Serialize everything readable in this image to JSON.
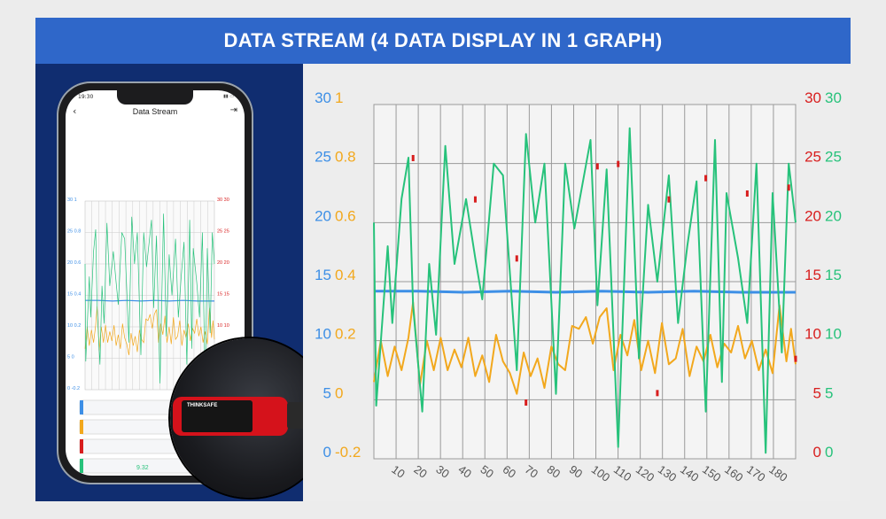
{
  "banner": {
    "title": "DATA STREAM (4 DATA DISPLAY IN 1 GRAPH)"
  },
  "phone": {
    "status_time": "19:30",
    "app_title": "Data Stream",
    "row_value": "9.32",
    "mini_axes": {
      "left": [
        "30 1",
        "25 0.8",
        "20 0.6",
        "15 0.4",
        "10 0.2",
        "5 0",
        "0 -0.2"
      ],
      "right": [
        "30 30",
        "25 25",
        "20 20",
        "15 15",
        "10 10",
        "5 5"
      ]
    }
  },
  "device": {
    "brand": "THINKSAFE"
  },
  "colors": {
    "blue": "#3d8fe6",
    "orange": "#f2a81d",
    "red": "#d81e1e",
    "green": "#27c27b",
    "banner": "#2f67c9"
  },
  "chart_data": {
    "type": "line",
    "title": "",
    "x_ticks": [
      "10",
      "20",
      "30",
      "40",
      "50",
      "60",
      "70",
      "80",
      "90",
      "100",
      "110",
      "120",
      "130",
      "140",
      "150",
      "160",
      "170",
      "180"
    ],
    "axes": {
      "left_blue": {
        "ticks": [
          "30",
          "25",
          "20",
          "15",
          "10",
          "5",
          "0"
        ],
        "range": [
          0,
          30
        ]
      },
      "left_orange": {
        "ticks": [
          "1",
          "0.8",
          "0.6",
          "0.4",
          "0.2",
          "0",
          "-0.2"
        ],
        "range": [
          -0.2,
          1
        ]
      },
      "right_red": {
        "ticks": [
          "30",
          "25",
          "20",
          "15",
          "10",
          "5",
          "0"
        ],
        "range": [
          0,
          30
        ]
      },
      "right_green": {
        "ticks": [
          "30",
          "25",
          "20",
          "15",
          "10",
          "5",
          "0"
        ],
        "range": [
          0,
          30
        ]
      }
    },
    "x_range": [
      1,
      184
    ],
    "series": [
      {
        "color": "#3d8fe6",
        "axis": "left_blue",
        "x": [
          1,
          20,
          40,
          60,
          80,
          100,
          120,
          140,
          160,
          184
        ],
        "y": [
          14.2,
          14.2,
          14.1,
          14.2,
          14.1,
          14.2,
          14.1,
          14.2,
          14.1,
          14.1
        ]
      },
      {
        "color": "#f2a81d",
        "axis": "left_orange",
        "x": [
          1,
          4,
          7,
          10,
          13,
          16,
          18,
          21,
          24,
          27,
          30,
          33,
          36,
          39,
          42,
          45,
          48,
          51,
          54,
          57,
          60,
          63,
          66,
          69,
          72,
          75,
          78,
          81,
          84,
          87,
          90,
          93,
          96,
          99,
          102,
          105,
          108,
          111,
          114,
          117,
          120,
          123,
          126,
          129,
          132,
          135,
          138,
          141,
          144,
          147,
          150,
          153,
          156,
          159,
          162,
          165,
          168,
          171,
          174,
          177,
          180,
          182,
          184
        ],
        "y": [
          0.06,
          0.2,
          0.08,
          0.18,
          0.1,
          0.21,
          0.33,
          0.05,
          0.2,
          0.1,
          0.21,
          0.1,
          0.17,
          0.11,
          0.21,
          0.08,
          0.15,
          0.06,
          0.22,
          0.13,
          0.09,
          0.02,
          0.16,
          0.08,
          0.14,
          0.04,
          0.18,
          0.12,
          0.1,
          0.25,
          0.24,
          0.28,
          0.19,
          0.28,
          0.31,
          0.1,
          0.22,
          0.15,
          0.27,
          0.1,
          0.2,
          0.09,
          0.26,
          0.12,
          0.14,
          0.24,
          0.08,
          0.18,
          0.13,
          0.22,
          0.11,
          0.19,
          0.16,
          0.25,
          0.14,
          0.2,
          0.1,
          0.17,
          0.09,
          0.32,
          0.13,
          0.24,
          0.12
        ]
      },
      {
        "color": "#27c27b",
        "axis": "right_green",
        "x": [
          1,
          2,
          7,
          9,
          13,
          16,
          18,
          22,
          25,
          28,
          32,
          36,
          41,
          45,
          48,
          53,
          57,
          63,
          67,
          71,
          75,
          80,
          84,
          88,
          95,
          98,
          102,
          107,
          112,
          116,
          120,
          124,
          129,
          133,
          137,
          141,
          145,
          149,
          152,
          154,
          159,
          163,
          167,
          171,
          174,
          178,
          181,
          184
        ],
        "y": [
          20,
          4.5,
          18,
          11.5,
          22,
          25.5,
          13,
          4,
          16.5,
          10.5,
          26.5,
          16.5,
          22,
          17,
          13.5,
          25,
          24,
          7.5,
          27.5,
          20,
          25,
          5.5,
          25,
          19.5,
          27,
          13,
          24.5,
          1,
          28,
          8.5,
          21.5,
          15,
          24,
          11.5,
          18,
          23.5,
          4,
          27,
          6.5,
          22.5,
          17,
          11.5,
          25,
          0.5,
          22.5,
          9,
          25,
          20
        ]
      },
      {
        "color": "#d81e1e",
        "axis": "right_red",
        "x": [
          18,
          45,
          63,
          67,
          98,
          107,
          124,
          129,
          145,
          163,
          181,
          184
        ],
        "y": [
          25.5,
          22,
          17,
          4.8,
          24.8,
          25,
          5.6,
          22,
          23.8,
          22.5,
          23,
          8.5
        ]
      }
    ]
  }
}
